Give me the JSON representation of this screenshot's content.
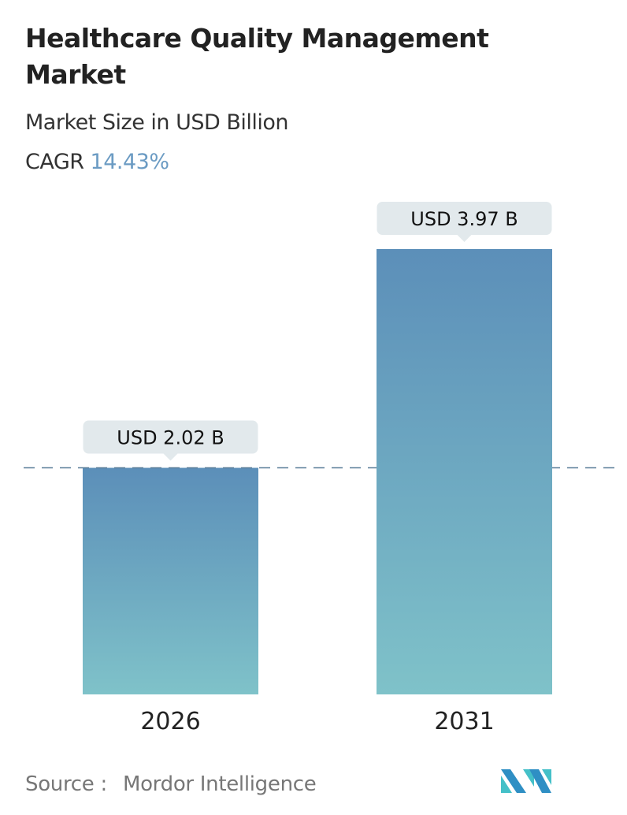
{
  "header": {
    "title": "Healthcare Quality Management Market",
    "subtitle": "Market Size in USD Billion",
    "cagr_label": "CAGR",
    "cagr_value": "14.43%"
  },
  "chart_data": {
    "type": "bar",
    "categories": [
      "2026",
      "2031"
    ],
    "values": [
      2.02,
      3.97
    ],
    "data_labels": [
      "USD 2.02 B",
      "USD 3.97 B"
    ],
    "unit": "USD Billion",
    "reference_line": 2.02,
    "colors": {
      "bar_top": "#5c8fb9",
      "bar_bottom": "#7fc2c9",
      "label_bg": "#e2e9ec",
      "dash": "#5b7f99"
    }
  },
  "footer": {
    "source_label": "Source :",
    "source_value": "Mordor Intelligence",
    "logo_text": "Mordor Intelligence"
  }
}
